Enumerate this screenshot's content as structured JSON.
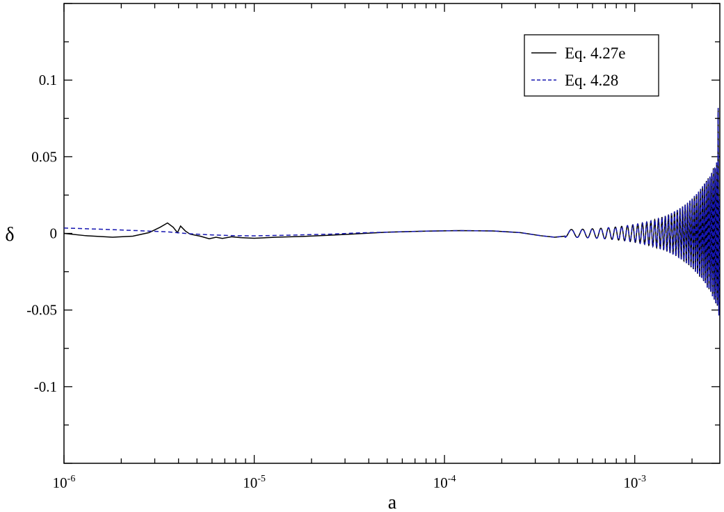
{
  "chart_data": {
    "type": "line",
    "xscale": "log",
    "xlim": [
      1e-06,
      0.0028
    ],
    "ylim": [
      -0.15,
      0.15
    ],
    "xlabel": "a",
    "ylabel": "δ",
    "grid": false,
    "legend_position": "top-right",
    "x_ticks": [
      {
        "value": 1e-06,
        "base": "10",
        "exp": "-6"
      },
      {
        "value": 1e-05,
        "base": "10",
        "exp": "-5"
      },
      {
        "value": 0.0001,
        "base": "10",
        "exp": "-4"
      },
      {
        "value": 0.001,
        "base": "10",
        "exp": "-3"
      }
    ],
    "y_ticks": [
      {
        "value": -0.1,
        "label": "-0.1"
      },
      {
        "value": -0.05,
        "label": "-0.05"
      },
      {
        "value": 0,
        "label": "0"
      },
      {
        "value": 0.05,
        "label": "0.05"
      },
      {
        "value": 0.1,
        "label": "0.1"
      }
    ],
    "series": [
      {
        "name": "Eq. 4.27e",
        "color": "#000000",
        "dash": "solid",
        "points": [
          [
            1e-06,
            0.0
          ],
          [
            1.3e-06,
            -0.0015
          ],
          [
            1.8e-06,
            -0.0025
          ],
          [
            2.3e-06,
            -0.0018
          ],
          [
            2.8e-06,
            0.0005
          ],
          [
            3.2e-06,
            0.004
          ],
          [
            3.5e-06,
            0.0068
          ],
          [
            3.75e-06,
            0.004
          ],
          [
            3.95e-06,
            0.0005
          ],
          [
            4.1e-06,
            0.0048
          ],
          [
            4.35e-06,
            0.0015
          ],
          [
            4.6e-06,
            -0.0005
          ],
          [
            5.2e-06,
            -0.0018
          ],
          [
            5.8e-06,
            -0.0035
          ],
          [
            6.3e-06,
            -0.0025
          ],
          [
            6.8e-06,
            -0.0033
          ],
          [
            7.6e-06,
            -0.0022
          ],
          [
            8.5e-06,
            -0.0028
          ],
          [
            1e-05,
            -0.0032
          ],
          [
            1.3e-05,
            -0.0025
          ],
          [
            1.8e-05,
            -0.002
          ],
          [
            2.5e-05,
            -0.0012
          ],
          [
            3.2e-05,
            -0.0005
          ],
          [
            5e-05,
            0.0008
          ],
          [
            8e-05,
            0.0015
          ],
          [
            0.00012,
            0.0018
          ],
          [
            0.00018,
            0.0016
          ],
          [
            0.00025,
            0.0005
          ],
          [
            0.00032,
            -0.0015
          ],
          [
            0.00038,
            -0.0025
          ],
          [
            0.00043,
            -0.0018
          ]
        ],
        "oscillation": {
          "a_start": 0.00043,
          "a_end": 0.0028,
          "start_period_decades": 0.07,
          "end_period_decades": 0.008,
          "amp_start": 0.0025,
          "amp_end": 0.052
        }
      },
      {
        "name": "Eq. 4.28",
        "color": "#1515b0",
        "dash": "dashed",
        "points": [
          [
            1e-06,
            0.0035
          ],
          [
            1.5e-06,
            0.0028
          ],
          [
            2e-06,
            0.0022
          ],
          [
            2.8e-06,
            0.0015
          ],
          [
            3.5e-06,
            0.001
          ],
          [
            4.5e-06,
            -0.0002
          ],
          [
            6e-06,
            -0.001
          ],
          [
            8e-06,
            -0.0015
          ],
          [
            1e-05,
            -0.0016
          ],
          [
            1.5e-05,
            -0.0012
          ],
          [
            2.5e-05,
            -0.0005
          ],
          [
            3.5e-05,
            0.0003
          ],
          [
            5e-05,
            0.0008
          ],
          [
            8e-05,
            0.0015
          ],
          [
            0.00012,
            0.0018
          ],
          [
            0.00018,
            0.0016
          ],
          [
            0.00025,
            0.0005
          ],
          [
            0.00032,
            -0.0015
          ],
          [
            0.00038,
            -0.0025
          ],
          [
            0.00043,
            -0.0018
          ]
        ],
        "oscillation": {
          "a_start": 0.00043,
          "a_end": 0.0028,
          "start_period_decades": 0.07,
          "end_period_decades": 0.008,
          "amp_start": 0.0025,
          "amp_end": 0.052
        }
      }
    ]
  }
}
